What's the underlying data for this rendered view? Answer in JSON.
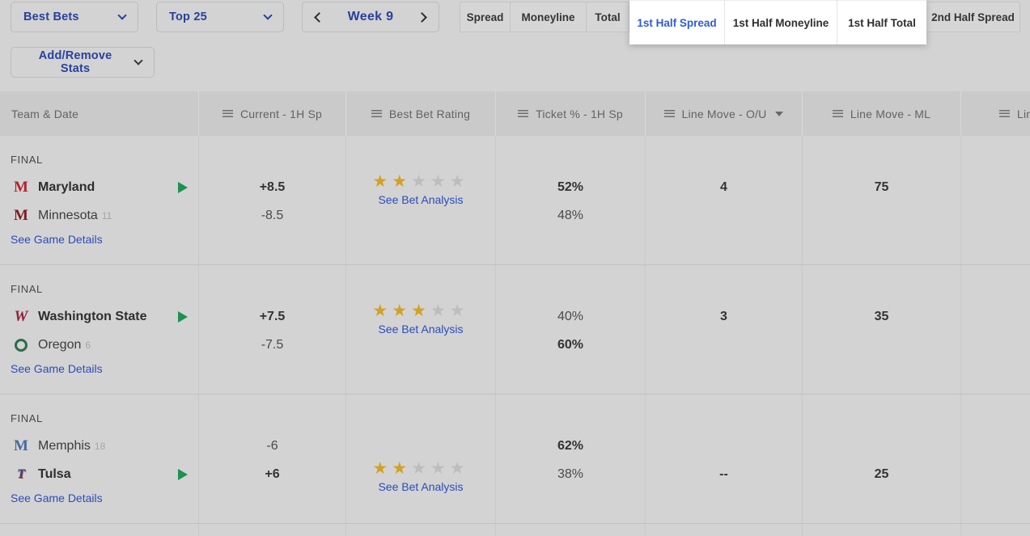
{
  "colors": {
    "accent_blue": "#27419e",
    "link_blue": "#2c4cba",
    "active_tab_blue": "#2f5bd6",
    "star_gold": "#d2a125",
    "star_gray": "#bdbdbd",
    "play_green": "#1d9152"
  },
  "toolbar": {
    "filter_buttons": [
      {
        "label": "Best Bets"
      },
      {
        "label": "Top 25"
      }
    ],
    "week_nav": {
      "label": "Week 9"
    },
    "add_remove_label": "Add/Remove Stats"
  },
  "bet_type_tabs": [
    {
      "label": "Spread",
      "active": false
    },
    {
      "label": "Moneyline",
      "active": false
    },
    {
      "label": "Total",
      "active": false
    },
    {
      "label": "1st Half Spread",
      "active": true
    },
    {
      "label": "1st Half Moneyline",
      "active": false
    },
    {
      "label": "1st Half Total",
      "active": false
    },
    {
      "label": "2nd Half Spread",
      "active": false
    }
  ],
  "table": {
    "columns": [
      {
        "label": "Team & Date"
      },
      {
        "label": "Current - 1H Sp"
      },
      {
        "label": "Best Bet Rating"
      },
      {
        "label": "Ticket % - 1H Sp"
      },
      {
        "label": "Line Move - O/U",
        "sorted": true
      },
      {
        "label": "Line Move - ML"
      },
      {
        "label": "Lin"
      }
    ],
    "games": [
      {
        "status": "FINAL",
        "teams": [
          {
            "name": "Maryland",
            "rank": ""
          },
          {
            "name": "Minnesota",
            "rank": "11"
          }
        ],
        "current": [
          "+8.5",
          "-8.5"
        ],
        "rating_stars": 2,
        "rating_link": "See Bet Analysis",
        "tickets": [
          "52%",
          "48%"
        ],
        "line_move_ou": "4",
        "line_move_ml": "75",
        "details_link": "See Game Details"
      },
      {
        "status": "FINAL",
        "teams": [
          {
            "name": "Washington State",
            "rank": ""
          },
          {
            "name": "Oregon",
            "rank": "6"
          }
        ],
        "current": [
          "+7.5",
          "-7.5"
        ],
        "rating_stars": 3,
        "rating_link": "See Bet Analysis",
        "tickets": [
          "40%",
          "60%"
        ],
        "line_move_ou": "3",
        "line_move_ml": "35",
        "details_link": "See Game Details"
      },
      {
        "status": "FINAL",
        "teams": [
          {
            "name": "Memphis",
            "rank": "18"
          },
          {
            "name": "Tulsa",
            "rank": ""
          }
        ],
        "current": [
          "-6",
          "+6"
        ],
        "rating_stars": 2,
        "rating_link": "See Bet Analysis",
        "tickets": [
          "62%",
          "38%"
        ],
        "line_move_ou": "--",
        "line_move_ml": "25",
        "details_link": "See Game Details"
      }
    ]
  }
}
